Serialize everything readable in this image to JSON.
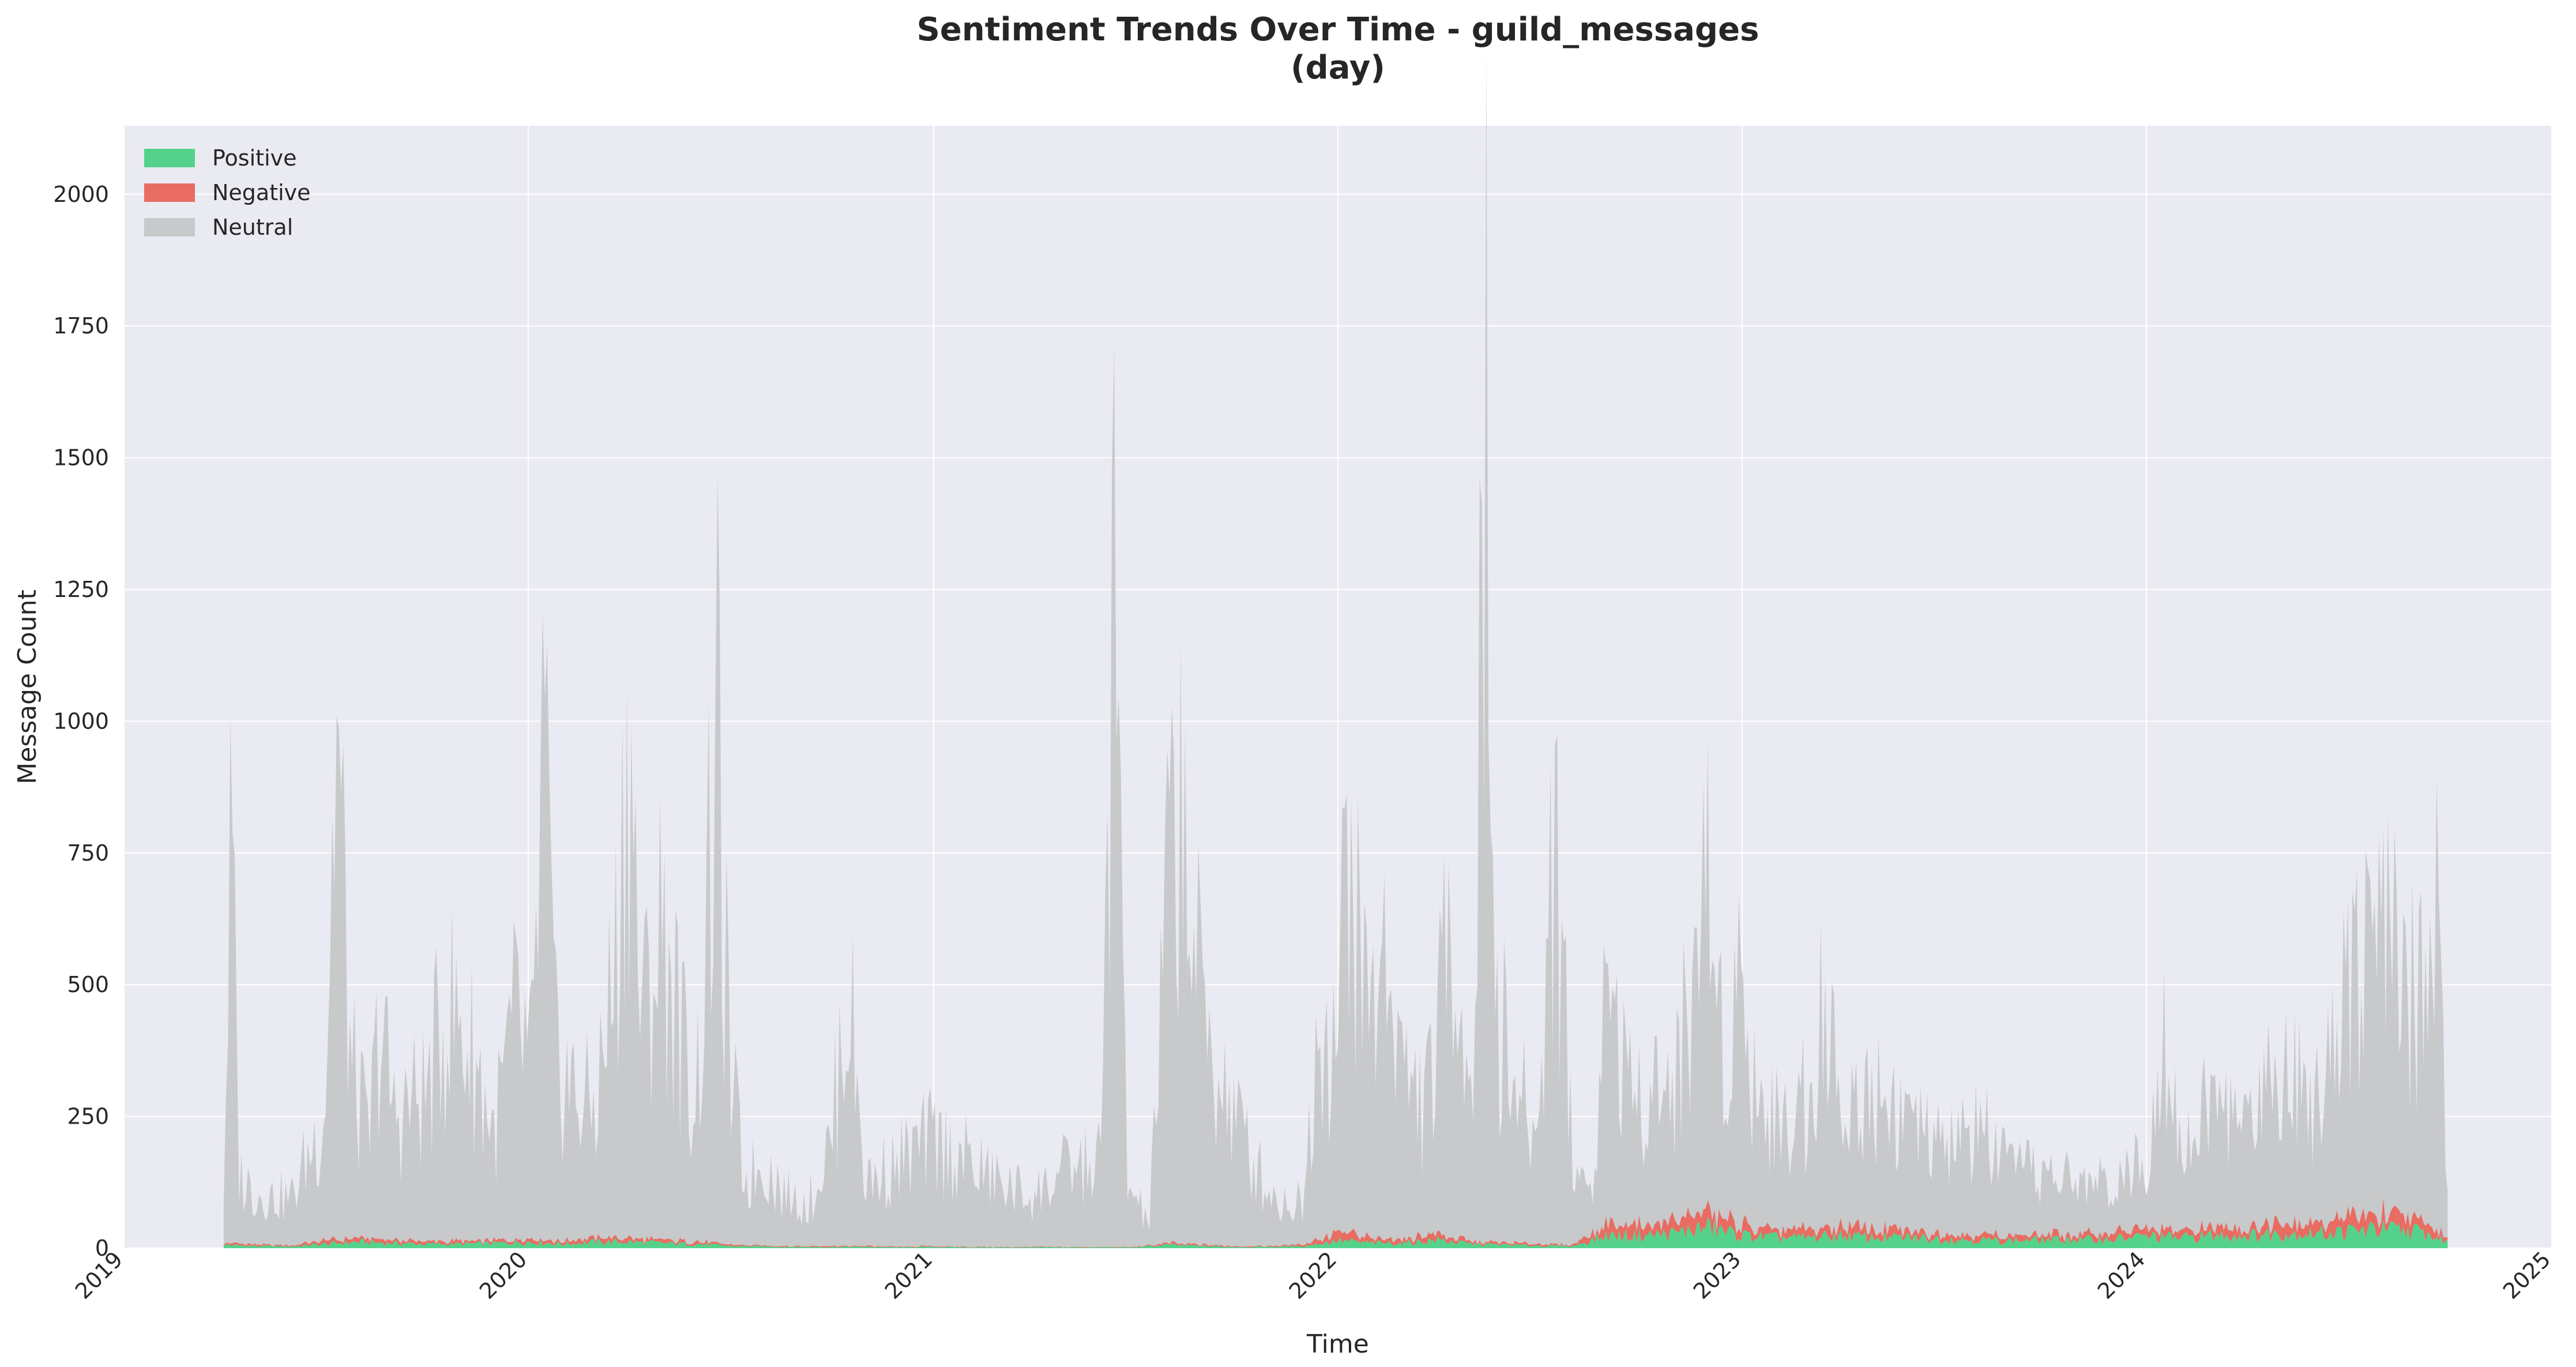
{
  "chart_data": {
    "type": "area",
    "stacked": true,
    "title": "Sentiment Trends Over Time - guild_messages",
    "subtitle": "(day)",
    "xlabel": "Time",
    "ylabel": "Message Count",
    "xlim": [
      "2019-01-01",
      "2025-01-01"
    ],
    "ylim": [
      0,
      2130
    ],
    "x_ticks": [
      "2019",
      "2020",
      "2021",
      "2022",
      "2023",
      "2024",
      "2025"
    ],
    "y_ticks": [
      0,
      250,
      500,
      750,
      1000,
      1250,
      1500,
      1750,
      2000
    ],
    "grid": true,
    "legend_position": "top-left",
    "x_start": "2019-04-01",
    "x_end": "2024-09-30",
    "series": [
      {
        "name": "Positive",
        "color": "#2ecc71",
        "values": [
          [
            "2019-04-01",
            8
          ],
          [
            "2019-05-01",
            5
          ],
          [
            "2019-06-01",
            4
          ],
          [
            "2019-07-01",
            10
          ],
          [
            "2019-08-01",
            15
          ],
          [
            "2019-09-01",
            12
          ],
          [
            "2019-10-01",
            10
          ],
          [
            "2019-11-01",
            10
          ],
          [
            "2019-12-01",
            12
          ],
          [
            "2020-01-01",
            15
          ],
          [
            "2020-02-01",
            10
          ],
          [
            "2020-03-01",
            15
          ],
          [
            "2020-04-01",
            15
          ],
          [
            "2020-05-01",
            12
          ],
          [
            "2020-06-01",
            10
          ],
          [
            "2020-07-01",
            5
          ],
          [
            "2020-08-01",
            4
          ],
          [
            "2020-09-01",
            3
          ],
          [
            "2020-10-01",
            3
          ],
          [
            "2020-11-01",
            3
          ],
          [
            "2020-12-01",
            2
          ],
          [
            "2021-01-01",
            3
          ],
          [
            "2021-02-01",
            2
          ],
          [
            "2021-03-01",
            2
          ],
          [
            "2021-04-01",
            2
          ],
          [
            "2021-05-01",
            2
          ],
          [
            "2021-06-01",
            2
          ],
          [
            "2021-07-01",
            2
          ],
          [
            "2021-08-01",
            8
          ],
          [
            "2021-09-01",
            5
          ],
          [
            "2021-10-01",
            3
          ],
          [
            "2021-11-01",
            3
          ],
          [
            "2021-12-01",
            5
          ],
          [
            "2022-01-01",
            18
          ],
          [
            "2022-02-01",
            12
          ],
          [
            "2022-03-01",
            12
          ],
          [
            "2022-04-01",
            20
          ],
          [
            "2022-05-01",
            10
          ],
          [
            "2022-06-01",
            8
          ],
          [
            "2022-07-01",
            6
          ],
          [
            "2022-08-01",
            5
          ],
          [
            "2022-09-01",
            30
          ],
          [
            "2022-10-01",
            30
          ],
          [
            "2022-11-01",
            35
          ],
          [
            "2022-12-01",
            50
          ],
          [
            "2023-01-01",
            30
          ],
          [
            "2023-02-01",
            25
          ],
          [
            "2023-03-01",
            25
          ],
          [
            "2023-04-01",
            30
          ],
          [
            "2023-05-01",
            25
          ],
          [
            "2023-06-01",
            25
          ],
          [
            "2023-07-01",
            22
          ],
          [
            "2023-08-01",
            20
          ],
          [
            "2023-09-01",
            18
          ],
          [
            "2023-10-01",
            20
          ],
          [
            "2023-11-01",
            20
          ],
          [
            "2023-12-01",
            22
          ],
          [
            "2024-01-01",
            28
          ],
          [
            "2024-02-01",
            25
          ],
          [
            "2024-03-01",
            30
          ],
          [
            "2024-04-01",
            30
          ],
          [
            "2024-05-01",
            35
          ],
          [
            "2024-06-01",
            35
          ],
          [
            "2024-07-01",
            40
          ],
          [
            "2024-08-01",
            45
          ],
          [
            "2024-09-01",
            40
          ],
          [
            "2024-09-30",
            15
          ]
        ]
      },
      {
        "name": "Negative",
        "color": "#e74c3c",
        "values": [
          [
            "2019-04-01",
            5
          ],
          [
            "2019-05-01",
            3
          ],
          [
            "2019-06-01",
            3
          ],
          [
            "2019-07-01",
            8
          ],
          [
            "2019-08-01",
            8
          ],
          [
            "2019-09-01",
            7
          ],
          [
            "2019-10-01",
            6
          ],
          [
            "2019-11-01",
            6
          ],
          [
            "2019-12-01",
            6
          ],
          [
            "2020-01-01",
            10
          ],
          [
            "2020-02-01",
            6
          ],
          [
            "2020-03-01",
            10
          ],
          [
            "2020-04-01",
            8
          ],
          [
            "2020-05-01",
            7
          ],
          [
            "2020-06-01",
            6
          ],
          [
            "2020-07-01",
            3
          ],
          [
            "2020-08-01",
            2
          ],
          [
            "2020-09-01",
            2
          ],
          [
            "2020-10-01",
            2
          ],
          [
            "2020-11-01",
            2
          ],
          [
            "2020-12-01",
            1
          ],
          [
            "2021-01-01",
            2
          ],
          [
            "2021-02-01",
            1
          ],
          [
            "2021-03-01",
            1
          ],
          [
            "2021-04-01",
            1
          ],
          [
            "2021-05-01",
            1
          ],
          [
            "2021-06-01",
            1
          ],
          [
            "2021-07-01",
            1
          ],
          [
            "2021-08-01",
            4
          ],
          [
            "2021-09-01",
            3
          ],
          [
            "2021-10-01",
            2
          ],
          [
            "2021-11-01",
            2
          ],
          [
            "2021-12-01",
            4
          ],
          [
            "2022-01-01",
            20
          ],
          [
            "2022-02-01",
            12
          ],
          [
            "2022-03-01",
            10
          ],
          [
            "2022-04-01",
            15
          ],
          [
            "2022-05-01",
            6
          ],
          [
            "2022-06-01",
            5
          ],
          [
            "2022-07-01",
            4
          ],
          [
            "2022-08-01",
            3
          ],
          [
            "2022-09-01",
            25
          ],
          [
            "2022-10-01",
            25
          ],
          [
            "2022-11-01",
            25
          ],
          [
            "2022-12-01",
            40
          ],
          [
            "2023-01-01",
            25
          ],
          [
            "2023-02-01",
            18
          ],
          [
            "2023-03-01",
            18
          ],
          [
            "2023-04-01",
            22
          ],
          [
            "2023-05-01",
            18
          ],
          [
            "2023-06-01",
            15
          ],
          [
            "2023-07-01",
            14
          ],
          [
            "2023-08-01",
            12
          ],
          [
            "2023-09-01",
            12
          ],
          [
            "2023-10-01",
            12
          ],
          [
            "2023-11-01",
            12
          ],
          [
            "2023-12-01",
            14
          ],
          [
            "2024-01-01",
            18
          ],
          [
            "2024-02-01",
            15
          ],
          [
            "2024-03-01",
            18
          ],
          [
            "2024-04-01",
            20
          ],
          [
            "2024-05-01",
            25
          ],
          [
            "2024-06-01",
            25
          ],
          [
            "2024-07-01",
            30
          ],
          [
            "2024-08-01",
            35
          ],
          [
            "2024-09-01",
            30
          ],
          [
            "2024-09-30",
            8
          ]
        ]
      },
      {
        "name": "Neutral",
        "color": "#c7c9cb",
        "values": [
          [
            "2019-04-01",
            130
          ],
          [
            "2019-04-08",
            980
          ],
          [
            "2019-04-15",
            160
          ],
          [
            "2019-05-01",
            120
          ],
          [
            "2019-06-01",
            110
          ],
          [
            "2019-07-01",
            300
          ],
          [
            "2019-07-12",
            1220
          ],
          [
            "2019-07-25",
            400
          ],
          [
            "2019-08-10",
            230
          ],
          [
            "2019-08-20",
            520
          ],
          [
            "2019-09-01",
            300
          ],
          [
            "2019-10-01",
            350
          ],
          [
            "2019-10-20",
            560
          ],
          [
            "2019-11-15",
            420
          ],
          [
            "2019-12-01",
            250
          ],
          [
            "2019-12-20",
            520
          ],
          [
            "2020-01-05",
            400
          ],
          [
            "2020-01-15",
            1200
          ],
          [
            "2020-01-25",
            450
          ],
          [
            "2020-02-10",
            350
          ],
          [
            "2020-03-01",
            300
          ],
          [
            "2020-03-20",
            650
          ],
          [
            "2020-04-01",
            1210
          ],
          [
            "2020-04-12",
            500
          ],
          [
            "2020-05-01",
            750
          ],
          [
            "2020-05-20",
            450
          ],
          [
            "2020-06-01",
            350
          ],
          [
            "2020-06-20",
            1170
          ],
          [
            "2020-07-01",
            400
          ],
          [
            "2020-07-15",
            150
          ],
          [
            "2020-08-01",
            200
          ],
          [
            "2020-08-20",
            120
          ],
          [
            "2020-09-10",
            100
          ],
          [
            "2020-10-01",
            250
          ],
          [
            "2020-10-15",
            630
          ],
          [
            "2020-11-01",
            150
          ],
          [
            "2020-12-01",
            200
          ],
          [
            "2021-01-01",
            250
          ],
          [
            "2021-02-01",
            200
          ],
          [
            "2021-03-01",
            150
          ],
          [
            "2021-04-01",
            120
          ],
          [
            "2021-05-01",
            180
          ],
          [
            "2021-06-01",
            200
          ],
          [
            "2021-06-12",
            1640
          ],
          [
            "2021-06-25",
            150
          ],
          [
            "2021-07-15",
            50
          ],
          [
            "2021-08-01",
            880
          ],
          [
            "2021-08-12",
            1120
          ],
          [
            "2021-08-25",
            650
          ],
          [
            "2021-09-10",
            450
          ],
          [
            "2021-10-01",
            300
          ],
          [
            "2021-10-20",
            180
          ],
          [
            "2021-11-10",
            100
          ],
          [
            "2021-12-01",
            100
          ],
          [
            "2021-12-15",
            550
          ],
          [
            "2022-01-01",
            450
          ],
          [
            "2022-01-10",
            990
          ],
          [
            "2022-01-20",
            650
          ],
          [
            "2022-02-01",
            550
          ],
          [
            "2022-02-15",
            700
          ],
          [
            "2022-03-01",
            400
          ],
          [
            "2022-03-20",
            300
          ],
          [
            "2022-04-01",
            450
          ],
          [
            "2022-04-15",
            840
          ],
          [
            "2022-05-01",
            300
          ],
          [
            "2022-05-15",
            1870
          ],
          [
            "2022-05-25",
            550
          ],
          [
            "2022-06-10",
            350
          ],
          [
            "2022-07-01",
            250
          ],
          [
            "2022-07-15",
            1050
          ],
          [
            "2022-08-01",
            200
          ],
          [
            "2022-08-20",
            100
          ],
          [
            "2022-09-01",
            640
          ],
          [
            "2022-09-20",
            300
          ],
          [
            "2022-10-10",
            350
          ],
          [
            "2022-11-01",
            300
          ],
          [
            "2022-12-01",
            780
          ],
          [
            "2022-12-15",
            400
          ],
          [
            "2023-01-01",
            600
          ],
          [
            "2023-01-15",
            300
          ],
          [
            "2023-02-01",
            250
          ],
          [
            "2023-03-01",
            300
          ],
          [
            "2023-03-15",
            570
          ],
          [
            "2023-04-01",
            250
          ],
          [
            "2023-05-01",
            350
          ],
          [
            "2023-06-01",
            250
          ],
          [
            "2023-07-01",
            200
          ],
          [
            "2023-08-01",
            250
          ],
          [
            "2023-09-01",
            150
          ],
          [
            "2023-10-01",
            150
          ],
          [
            "2023-11-01",
            120
          ],
          [
            "2023-12-01",
            120
          ],
          [
            "2024-01-01",
            150
          ],
          [
            "2024-01-15",
            550
          ],
          [
            "2024-02-01",
            200
          ],
          [
            "2024-03-01",
            300
          ],
          [
            "2024-04-01",
            250
          ],
          [
            "2024-05-01",
            400
          ],
          [
            "2024-06-01",
            300
          ],
          [
            "2024-07-01",
            600
          ],
          [
            "2024-08-01",
            650
          ],
          [
            "2024-09-01",
            500
          ],
          [
            "2024-09-20",
            740
          ],
          [
            "2024-09-30",
            60
          ]
        ]
      }
    ]
  }
}
